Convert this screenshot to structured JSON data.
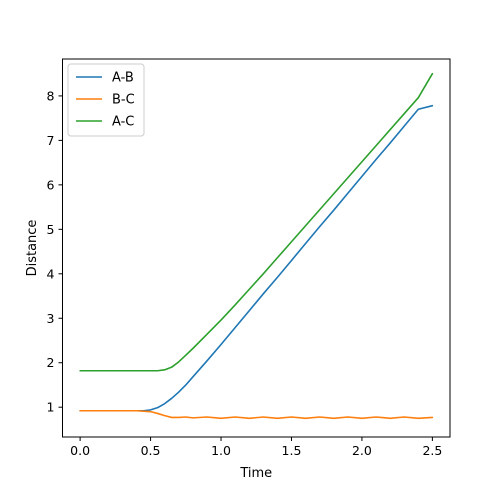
{
  "chart_data": {
    "type": "line",
    "title": "",
    "xlabel": "Time",
    "ylabel": "Distance",
    "xlim": [
      -0.125,
      2.625
    ],
    "ylim": [
      0.33,
      8.83
    ],
    "xticks": [
      0.0,
      0.5,
      1.0,
      1.5,
      2.0,
      2.5
    ],
    "xtick_labels": [
      "0.0",
      "0.5",
      "1.0",
      "1.5",
      "2.0",
      "2.5"
    ],
    "yticks": [
      1,
      2,
      3,
      4,
      5,
      6,
      7,
      8
    ],
    "ytick_labels": [
      "1",
      "2",
      "3",
      "4",
      "5",
      "6",
      "7",
      "8"
    ],
    "grid": false,
    "legend_position": "top-left",
    "series": [
      {
        "name": "A-B",
        "color": "#1f77b4",
        "x": [
          0.0,
          0.1,
          0.2,
          0.3,
          0.4,
          0.45,
          0.5,
          0.55,
          0.6,
          0.65,
          0.7,
          0.75,
          0.8,
          0.85,
          0.9,
          1.0,
          1.1,
          1.2,
          1.3,
          1.4,
          1.5,
          1.6,
          1.7,
          1.8,
          1.9,
          2.0,
          2.1,
          2.2,
          2.3,
          2.4,
          2.5
        ],
        "y": [
          0.92,
          0.92,
          0.92,
          0.92,
          0.92,
          0.92,
          0.94,
          0.99,
          1.08,
          1.2,
          1.34,
          1.5,
          1.68,
          1.86,
          2.04,
          2.41,
          2.79,
          3.17,
          3.55,
          3.92,
          4.3,
          4.68,
          5.06,
          5.43,
          5.81,
          6.19,
          6.57,
          6.94,
          7.32,
          7.7,
          7.78
        ]
      },
      {
        "name": "B-C",
        "color": "#ff7f0e",
        "x": [
          0.0,
          0.1,
          0.2,
          0.3,
          0.4,
          0.5,
          0.55,
          0.6,
          0.65,
          0.7,
          0.75,
          0.8,
          0.9,
          1.0,
          1.1,
          1.2,
          1.3,
          1.4,
          1.5,
          1.6,
          1.7,
          1.8,
          1.9,
          2.0,
          2.1,
          2.2,
          2.3,
          2.4,
          2.5
        ],
        "y": [
          0.92,
          0.92,
          0.92,
          0.92,
          0.92,
          0.9,
          0.86,
          0.81,
          0.77,
          0.77,
          0.78,
          0.76,
          0.78,
          0.75,
          0.78,
          0.75,
          0.78,
          0.75,
          0.78,
          0.75,
          0.78,
          0.75,
          0.78,
          0.75,
          0.78,
          0.75,
          0.78,
          0.75,
          0.77
        ]
      },
      {
        "name": "A-C",
        "color": "#2ca02c",
        "x": [
          0.0,
          0.1,
          0.2,
          0.3,
          0.4,
          0.5,
          0.55,
          0.6,
          0.65,
          0.7,
          0.75,
          0.8,
          0.9,
          1.0,
          1.1,
          1.2,
          1.3,
          1.4,
          1.5,
          1.6,
          1.7,
          1.8,
          1.9,
          2.0,
          2.1,
          2.2,
          2.3,
          2.4,
          2.5
        ],
        "y": [
          1.82,
          1.82,
          1.82,
          1.82,
          1.82,
          1.82,
          1.82,
          1.84,
          1.9,
          2.02,
          2.17,
          2.32,
          2.64,
          2.96,
          3.3,
          3.65,
          4.0,
          4.36,
          4.72,
          5.08,
          5.44,
          5.8,
          6.16,
          6.52,
          6.88,
          7.24,
          7.6,
          7.96,
          8.5
        ]
      }
    ]
  }
}
